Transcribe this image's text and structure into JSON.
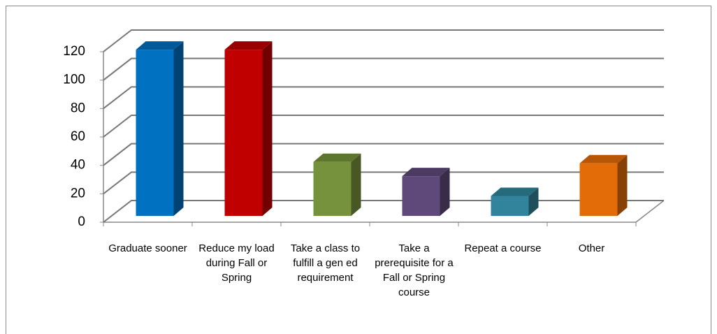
{
  "chart_data": {
    "type": "bar3d",
    "categories": [
      "Graduate sooner",
      "Reduce my load during Fall or Spring",
      "Take a class to fulfill a gen ed requirement",
      "Take a prerequisite for a Fall or Spring course",
      "Repeat a course",
      "Other"
    ],
    "values": [
      117,
      117,
      38,
      28,
      14,
      37
    ],
    "colors": [
      "#0070c0",
      "#c00000",
      "#76923c",
      "#5f497a",
      "#31849b",
      "#e36c09"
    ],
    "ylim": [
      0,
      120
    ],
    "yticks": [
      0,
      20,
      40,
      60,
      80,
      100,
      120
    ],
    "grid": true
  }
}
